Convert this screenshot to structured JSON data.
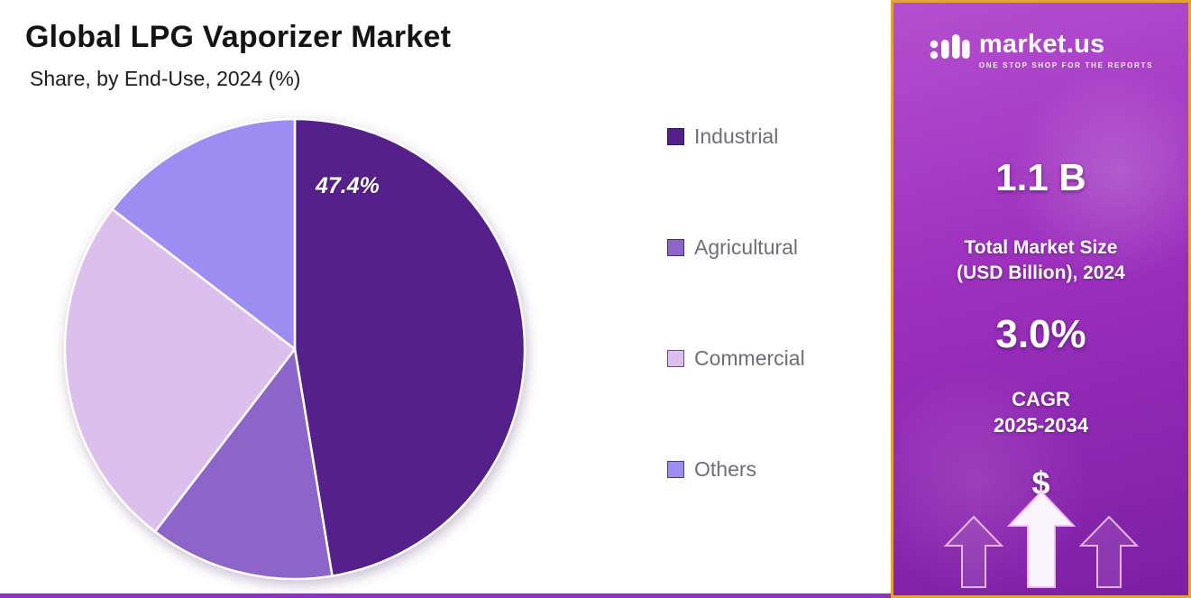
{
  "page": {
    "bottom_bar_color": "#8d35b5"
  },
  "header": {
    "title": "Global LPG Vaporizer Market",
    "subtitle": "Share, by End-Use, 2024 (%)"
  },
  "chart_data": {
    "type": "pie",
    "title": "Global LPG Vaporizer Market Share, by End-Use, 2024 (%)",
    "unit": "%",
    "start_angle_deg": 0,
    "direction": "clockwise",
    "legend_position": "right",
    "slices": [
      {
        "label": "Industrial",
        "value": 47.4,
        "color": "#55208a",
        "data_label": "47.4%"
      },
      {
        "label": "Agricultural",
        "value": 13.0,
        "color": "#8d64c8",
        "data_label": ""
      },
      {
        "label": "Commercial",
        "value": 25.0,
        "color": "#dcbfec",
        "data_label": ""
      },
      {
        "label": "Others",
        "value": 14.6,
        "color": "#9d8df2",
        "data_label": ""
      }
    ]
  },
  "sidebar": {
    "logo_text": "market.us",
    "logo_tagline": "ONE STOP SHOP FOR THE REPORTS",
    "stat1_value": "1.1 B",
    "stat1_label_line1": "Total Market Size",
    "stat1_label_line2": "(USD Billion), 2024",
    "stat2_value": "3.0%",
    "stat2_label_line1": "CAGR",
    "stat2_label_line2": "2025-2034",
    "dollar_symbol": "$",
    "border_color": "#e2a23c",
    "gradient_top": "#b44fd0",
    "gradient_bottom": "#7c1fa4"
  }
}
